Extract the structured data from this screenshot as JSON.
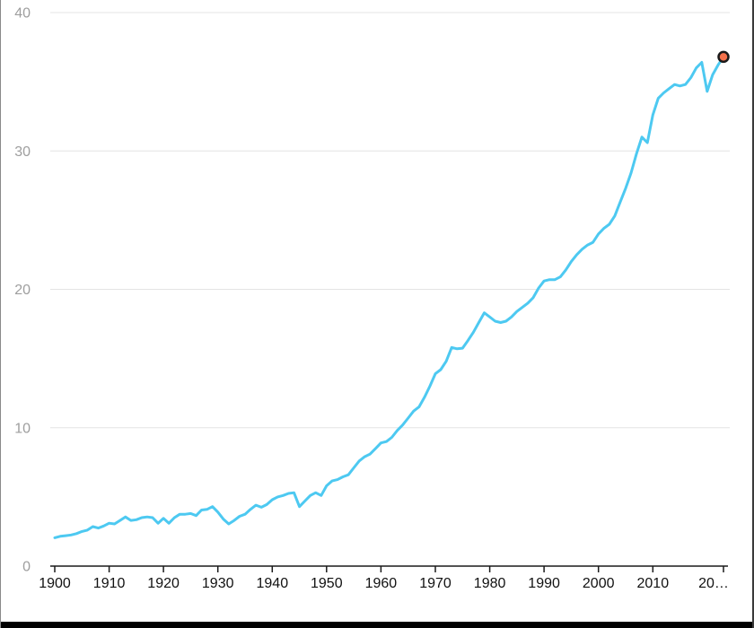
{
  "window": {
    "bottom_bar_color": "#000000"
  },
  "chart_data": {
    "type": "line",
    "title": "",
    "grid": "horizontal",
    "legend": "none",
    "ylim": [
      0,
      40
    ],
    "yticks": [
      0,
      10,
      20,
      30,
      40
    ],
    "ytick_labels": [
      "0",
      "10",
      "20",
      "30",
      "40"
    ],
    "xtick_years": [
      1900,
      1910,
      1920,
      1930,
      1940,
      1950,
      1960,
      1970,
      1980,
      1990,
      2000,
      2010,
      2023
    ],
    "xtick_labels": [
      "1900",
      "1910",
      "1920",
      "1930",
      "1940",
      "1950",
      "1960",
      "1970",
      "1980",
      "1990",
      "2000",
      "2010",
      "20…"
    ],
    "line_color": "#4DC9F1",
    "grid_color": "#e4e4e4",
    "axis_color": "#1a1a1a",
    "y_label_color": "#9e9e9e",
    "x_label_color": "#111111",
    "endpoint": {
      "year": 2023,
      "value": 36.8,
      "fill": "#F4714B",
      "stroke": "#1a1a1a"
    },
    "x": [
      1900,
      1901,
      1902,
      1903,
      1904,
      1905,
      1906,
      1907,
      1908,
      1909,
      1910,
      1911,
      1912,
      1913,
      1914,
      1915,
      1916,
      1917,
      1918,
      1919,
      1920,
      1921,
      1922,
      1923,
      1924,
      1925,
      1926,
      1927,
      1928,
      1929,
      1930,
      1931,
      1932,
      1933,
      1934,
      1935,
      1936,
      1937,
      1938,
      1939,
      1940,
      1941,
      1942,
      1943,
      1944,
      1945,
      1946,
      1947,
      1948,
      1949,
      1950,
      1951,
      1952,
      1953,
      1954,
      1955,
      1956,
      1957,
      1958,
      1959,
      1960,
      1961,
      1962,
      1963,
      1964,
      1965,
      1966,
      1967,
      1968,
      1969,
      1970,
      1971,
      1972,
      1973,
      1974,
      1975,
      1976,
      1977,
      1978,
      1979,
      1980,
      1981,
      1982,
      1983,
      1984,
      1985,
      1986,
      1987,
      1988,
      1989,
      1990,
      1991,
      1992,
      1993,
      1994,
      1995,
      1996,
      1997,
      1998,
      1999,
      2000,
      2001,
      2002,
      2003,
      2004,
      2005,
      2006,
      2007,
      2008,
      2009,
      2010,
      2011,
      2012,
      2013,
      2014,
      2015,
      2016,
      2017,
      2018,
      2019,
      2020,
      2021,
      2022,
      2023
    ],
    "values": [
      2.05,
      2.15,
      2.2,
      2.25,
      2.35,
      2.5,
      2.6,
      2.85,
      2.75,
      2.9,
      3.1,
      3.05,
      3.3,
      3.55,
      3.3,
      3.35,
      3.5,
      3.55,
      3.5,
      3.1,
      3.45,
      3.1,
      3.5,
      3.75,
      3.75,
      3.8,
      3.65,
      4.05,
      4.1,
      4.3,
      3.9,
      3.4,
      3.05,
      3.3,
      3.6,
      3.75,
      4.1,
      4.4,
      4.25,
      4.45,
      4.8,
      5.0,
      5.1,
      5.25,
      5.3,
      4.3,
      4.7,
      5.1,
      5.3,
      5.1,
      5.8,
      6.15,
      6.25,
      6.45,
      6.6,
      7.1,
      7.6,
      7.9,
      8.1,
      8.5,
      8.9,
      9.0,
      9.3,
      9.8,
      10.2,
      10.7,
      11.2,
      11.5,
      12.2,
      13.0,
      13.9,
      14.2,
      14.8,
      15.8,
      15.7,
      15.75,
      16.3,
      16.9,
      17.6,
      18.3,
      18.0,
      17.7,
      17.6,
      17.7,
      18.0,
      18.4,
      18.7,
      19.0,
      19.4,
      20.1,
      20.6,
      20.7,
      20.7,
      20.9,
      21.4,
      22.0,
      22.5,
      22.9,
      23.2,
      23.4,
      24.0,
      24.4,
      24.7,
      25.3,
      26.3,
      27.3,
      28.4,
      29.8,
      31.0,
      30.6,
      32.6,
      33.8,
      34.2,
      34.5,
      34.8,
      34.7,
      34.8,
      35.3,
      36.0,
      36.4,
      34.3,
      35.5,
      36.2,
      36.8
    ]
  }
}
